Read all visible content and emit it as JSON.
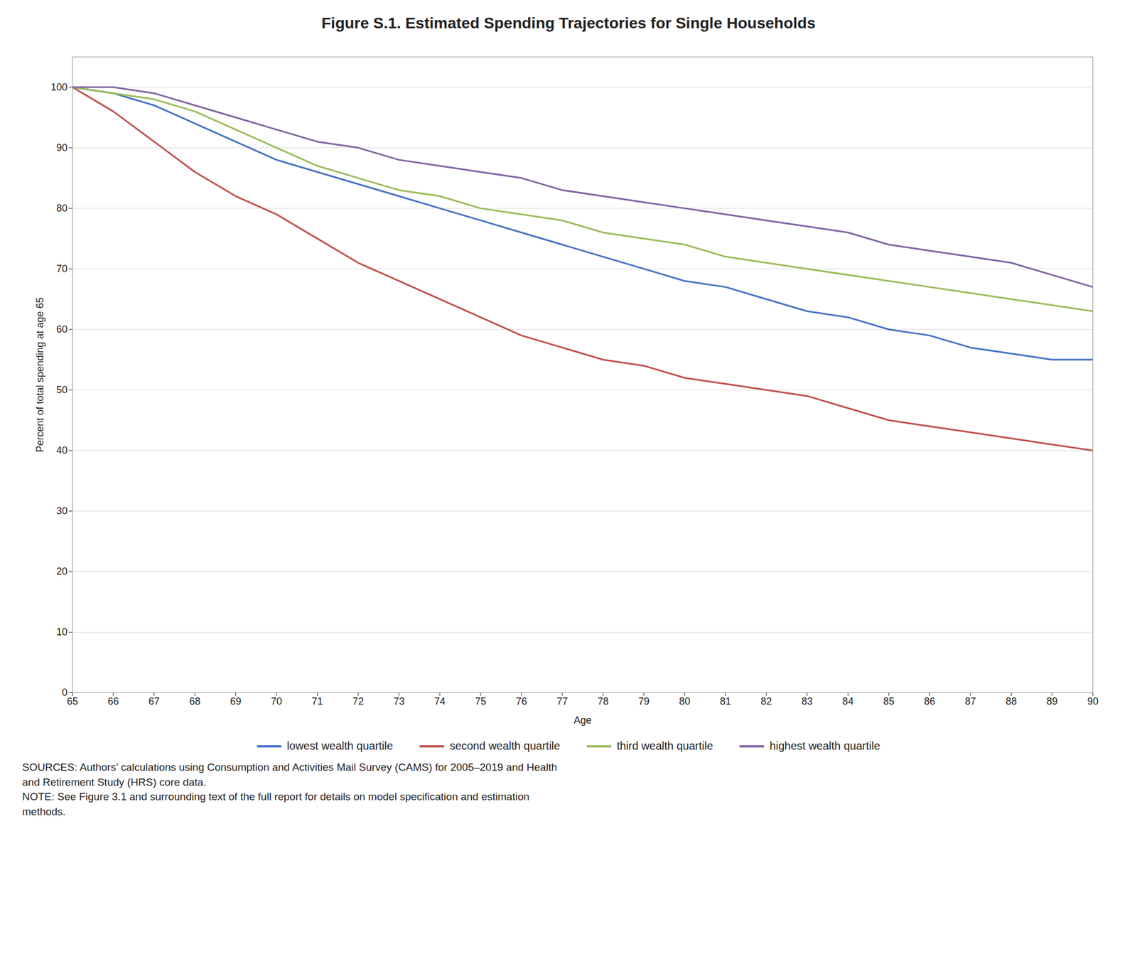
{
  "chart_data": {
    "type": "line",
    "title": "Figure S.1. Estimated Spending Trajectories for Single Households",
    "xlabel": "Age",
    "ylabel": "Percent of total spending at age 65",
    "x": [
      65,
      66,
      67,
      68,
      69,
      70,
      71,
      72,
      73,
      74,
      75,
      76,
      77,
      78,
      79,
      80,
      81,
      82,
      83,
      84,
      85,
      86,
      87,
      88,
      89,
      90
    ],
    "series": [
      {
        "name": "lowest wealth quartile",
        "color": "#4472C4",
        "values": [
          100,
          99,
          97,
          94,
          91,
          88,
          86,
          84,
          82,
          80,
          78,
          76,
          74,
          72,
          70,
          68,
          67,
          65,
          63,
          62,
          60,
          59,
          57,
          56,
          55,
          55
        ]
      },
      {
        "name": "second wealth quartile",
        "color": "#C0504D",
        "values": [
          100,
          96,
          91,
          86,
          82,
          79,
          75,
          71,
          68,
          65,
          62,
          59,
          57,
          55,
          54,
          52,
          51,
          50,
          49,
          47,
          45,
          44,
          43,
          42,
          41,
          40
        ]
      },
      {
        "name": "third wealth quartile",
        "color": "#9BBB59",
        "values": [
          100,
          99,
          98,
          96,
          93,
          90,
          87,
          85,
          83,
          82,
          80,
          79,
          78,
          76,
          75,
          74,
          72,
          71,
          70,
          69,
          68,
          67,
          66,
          65,
          64,
          63
        ]
      },
      {
        "name": "highest wealth quartile",
        "color": "#8064A2",
        "values": [
          100,
          100,
          99,
          97,
          95,
          93,
          91,
          90,
          88,
          87,
          86,
          85,
          83,
          82,
          81,
          80,
          79,
          78,
          77,
          76,
          74,
          73,
          72,
          71,
          69,
          67
        ]
      }
    ],
    "xlim": [
      65,
      90
    ],
    "xticks": [
      65,
      66,
      67,
      68,
      69,
      70,
      71,
      72,
      73,
      74,
      75,
      76,
      77,
      78,
      79,
      80,
      81,
      82,
      83,
      84,
      85,
      86,
      87,
      88,
      89,
      90
    ],
    "ylim": [
      0,
      105
    ],
    "yticks": [
      0,
      10,
      20,
      30,
      40,
      50,
      60,
      70,
      80,
      90,
      100
    ],
    "grid": "y",
    "legend": "bottom",
    "caption": "SOURCES: Authors’ calculations using Consumption and Activities Mail Survey (CAMS) for 2005–2019 and Health\nand Retirement Study (HRS) core data.\nNOTE: See Figure 3.1 and surrounding text of the full report for details on model specification and estimation\nmethods."
  }
}
